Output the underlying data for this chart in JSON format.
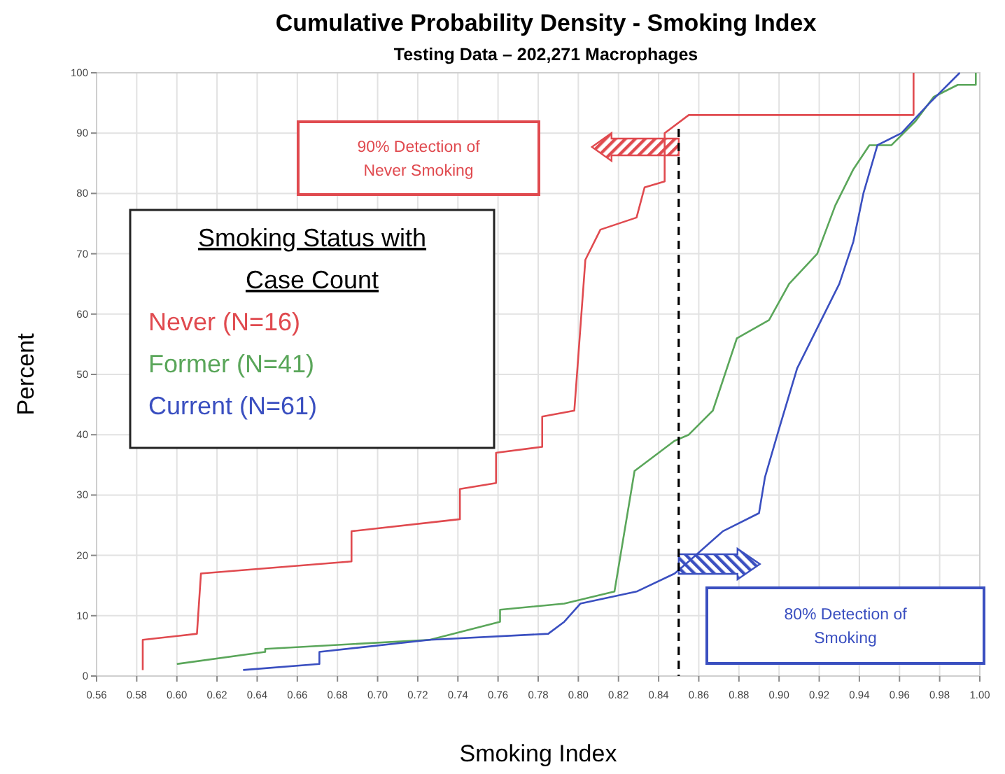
{
  "chart_data": {
    "type": "line",
    "title": "Cumulative Probability Density  - Smoking Index",
    "subtitle": "Testing Data – 202,271 Macrophages",
    "xlabel": "Smoking Index",
    "ylabel": "Percent",
    "legend_title": "Smoking Status with Case Count",
    "legend": "top left",
    "grid": true,
    "line_style": "solid",
    "marker": "none",
    "xlim": [
      0.56,
      1.0
    ],
    "xticks": [
      {
        "value": 0.56,
        "label": "0.56"
      },
      {
        "value": 0.58,
        "label": "0.58"
      },
      {
        "value": 0.6,
        "label": "0.60"
      },
      {
        "value": 0.62,
        "label": "0.62"
      },
      {
        "value": 0.64,
        "label": "0.64"
      },
      {
        "value": 0.66,
        "label": "0.66"
      },
      {
        "value": 0.68,
        "label": "0.68"
      },
      {
        "value": 0.7,
        "label": "0.70"
      },
      {
        "value": 0.72,
        "label": "0.72"
      },
      {
        "value": 0.74,
        "label": "0.74"
      },
      {
        "value": 0.76,
        "label": "0.76"
      },
      {
        "value": 0.78,
        "label": "0.78"
      },
      {
        "value": 0.8,
        "label": "0.80"
      },
      {
        "value": 0.82,
        "label": "0.82"
      },
      {
        "value": 0.84,
        "label": "0.84"
      },
      {
        "value": 0.86,
        "label": "0.86"
      },
      {
        "value": 0.88,
        "label": "0.88"
      },
      {
        "value": 0.9,
        "label": "0.90"
      },
      {
        "value": 0.92,
        "label": "0.92"
      },
      {
        "value": 0.94,
        "label": "0.94"
      },
      {
        "value": 0.96,
        "label": "0.96"
      },
      {
        "value": 0.98,
        "label": "0.98"
      },
      {
        "value": 1.0,
        "label": "1.00"
      }
    ],
    "ylim": [
      0,
      100
    ],
    "yticks": [
      0,
      10,
      20,
      30,
      40,
      50,
      60,
      70,
      80,
      90,
      100
    ],
    "ref_lines": [
      {
        "axis": "x",
        "value": 0.85,
        "color": "#000000",
        "line_style": "dashed"
      }
    ],
    "annotations": [
      "90% Detection of Never Smoking",
      "80% Detection of Smoking"
    ],
    "series": [
      {
        "name": "Never (N=16)",
        "color": "#e04a4f",
        "x": [
          0.583,
          0.583,
          0.61,
          0.612,
          0.687,
          0.687,
          0.741,
          0.741,
          0.759,
          0.759,
          0.782,
          0.782,
          0.798,
          0.8035,
          0.811,
          0.829,
          0.833,
          0.843,
          0.843,
          0.855,
          0.967,
          0.967
        ],
        "values": [
          1,
          6,
          7,
          17,
          19,
          24,
          26,
          31,
          32,
          37,
          38,
          43,
          44,
          69,
          74,
          76,
          81,
          82,
          90,
          93,
          93,
          100
        ]
      },
      {
        "name": "Former (N=41)",
        "color": "#5aa65a",
        "x": [
          0.6,
          0.644,
          0.644,
          0.726,
          0.761,
          0.761,
          0.793,
          0.818,
          0.828,
          0.848,
          0.855,
          0.867,
          0.879,
          0.895,
          0.905,
          0.919,
          0.928,
          0.937,
          0.945,
          0.956,
          0.968,
          0.977,
          0.989,
          0.998,
          0.998
        ],
        "values": [
          2,
          4,
          4.5,
          6,
          9,
          11,
          12,
          14,
          34,
          39,
          40,
          44,
          56,
          59,
          65,
          70,
          78,
          84,
          88,
          88,
          92,
          96,
          98,
          98,
          100
        ]
      },
      {
        "name": "Current (N=61)",
        "color": "#3a4fc0",
        "x": [
          0.633,
          0.671,
          0.671,
          0.726,
          0.785,
          0.793,
          0.801,
          0.829,
          0.848,
          0.855,
          0.872,
          0.89,
          0.893,
          0.9,
          0.909,
          0.921,
          0.93,
          0.937,
          0.942,
          0.949,
          0.961,
          0.975,
          0.99
        ],
        "values": [
          1,
          2,
          4,
          6,
          7,
          9,
          12,
          14,
          17,
          19,
          24,
          27,
          33,
          41,
          51,
          59,
          65,
          72,
          80,
          88,
          90,
          95,
          100
        ]
      }
    ]
  }
}
